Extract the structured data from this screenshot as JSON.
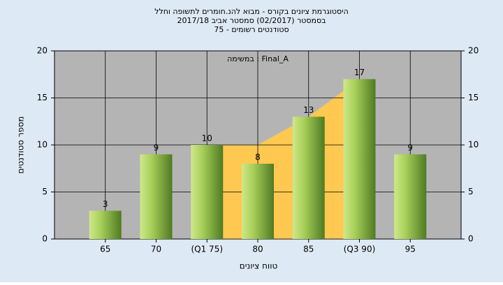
{
  "chart_data": {
    "type": "bar",
    "title": [
      "היסטוגרמת ציונים בקורס - מבוא להנ.חומרים לתשופה וחלל",
      "בסמסטר  (02/2017)  סמסטר אביב 2017/18",
      "סטודנטים רשומים - 75"
    ],
    "annotation": "במשימה : Final_A",
    "xlabel": "טווח ציונים",
    "ylabel": "מספר סטודנטים",
    "categories": [
      "65",
      "70",
      "(Q1 75)",
      "80",
      "85",
      "(Q3 90)",
      "95"
    ],
    "values": [
      3,
      9,
      10,
      8,
      13,
      17,
      9
    ],
    "color": "#8fbf3f",
    "area": {
      "color": "#ffc850",
      "values": [
        null,
        null,
        10,
        10,
        13,
        17,
        null
      ]
    },
    "ylim": [
      0,
      20
    ],
    "yticks": [
      0,
      5,
      10,
      15,
      20
    ],
    "y2lim": [
      0,
      20
    ],
    "y2ticks": [
      0,
      5,
      10,
      15,
      20
    ],
    "grid": true
  }
}
